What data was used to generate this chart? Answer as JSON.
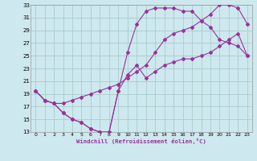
{
  "xlabel": "Windchill (Refroidissement éolien,°C)",
  "ylabel": "",
  "xlim": [
    -0.5,
    23.5
  ],
  "ylim": [
    13,
    33
  ],
  "xticks": [
    0,
    1,
    2,
    3,
    4,
    5,
    6,
    7,
    8,
    9,
    10,
    11,
    12,
    13,
    14,
    15,
    16,
    17,
    18,
    19,
    20,
    21,
    22,
    23
  ],
  "yticks": [
    13,
    15,
    17,
    19,
    21,
    23,
    25,
    27,
    29,
    31,
    33
  ],
  "bg_color": "#cde8ee",
  "line_color": "#993399",
  "grid_color": "#aacccc",
  "curve1_x": [
    0,
    1,
    2,
    3,
    4,
    5,
    6,
    7,
    8,
    9,
    10,
    11,
    12,
    13,
    14,
    15,
    16,
    17,
    18,
    19,
    20,
    21,
    22,
    23
  ],
  "curve1_y": [
    19.5,
    18.0,
    17.5,
    16.0,
    15.0,
    14.5,
    13.5,
    13.0,
    13.0,
    19.5,
    22.0,
    23.5,
    21.5,
    22.5,
    23.5,
    24.0,
    24.5,
    24.5,
    25.0,
    25.5,
    26.5,
    27.5,
    28.5,
    25.0
  ],
  "curve2_x": [
    0,
    1,
    2,
    3,
    4,
    5,
    6,
    7,
    8,
    9,
    10,
    11,
    12,
    13,
    14,
    15,
    16,
    17,
    18,
    19,
    20,
    21,
    22,
    23
  ],
  "curve2_y": [
    19.5,
    18.0,
    17.5,
    16.0,
    15.0,
    14.5,
    13.5,
    13.0,
    13.0,
    19.5,
    25.5,
    30.0,
    32.0,
    32.5,
    32.5,
    32.5,
    32.0,
    32.0,
    30.5,
    29.5,
    27.5,
    27.0,
    26.5,
    25.0
  ],
  "curve3_x": [
    0,
    1,
    2,
    3,
    4,
    5,
    6,
    7,
    8,
    9,
    10,
    11,
    12,
    13,
    14,
    15,
    16,
    17,
    18,
    19,
    20,
    21,
    22,
    23
  ],
  "curve3_y": [
    19.5,
    18.0,
    17.5,
    17.5,
    18.0,
    18.5,
    19.0,
    19.5,
    20.0,
    20.5,
    21.5,
    22.5,
    23.5,
    25.5,
    27.5,
    28.5,
    29.0,
    29.5,
    30.5,
    31.5,
    33.0,
    33.0,
    32.5,
    30.0
  ]
}
